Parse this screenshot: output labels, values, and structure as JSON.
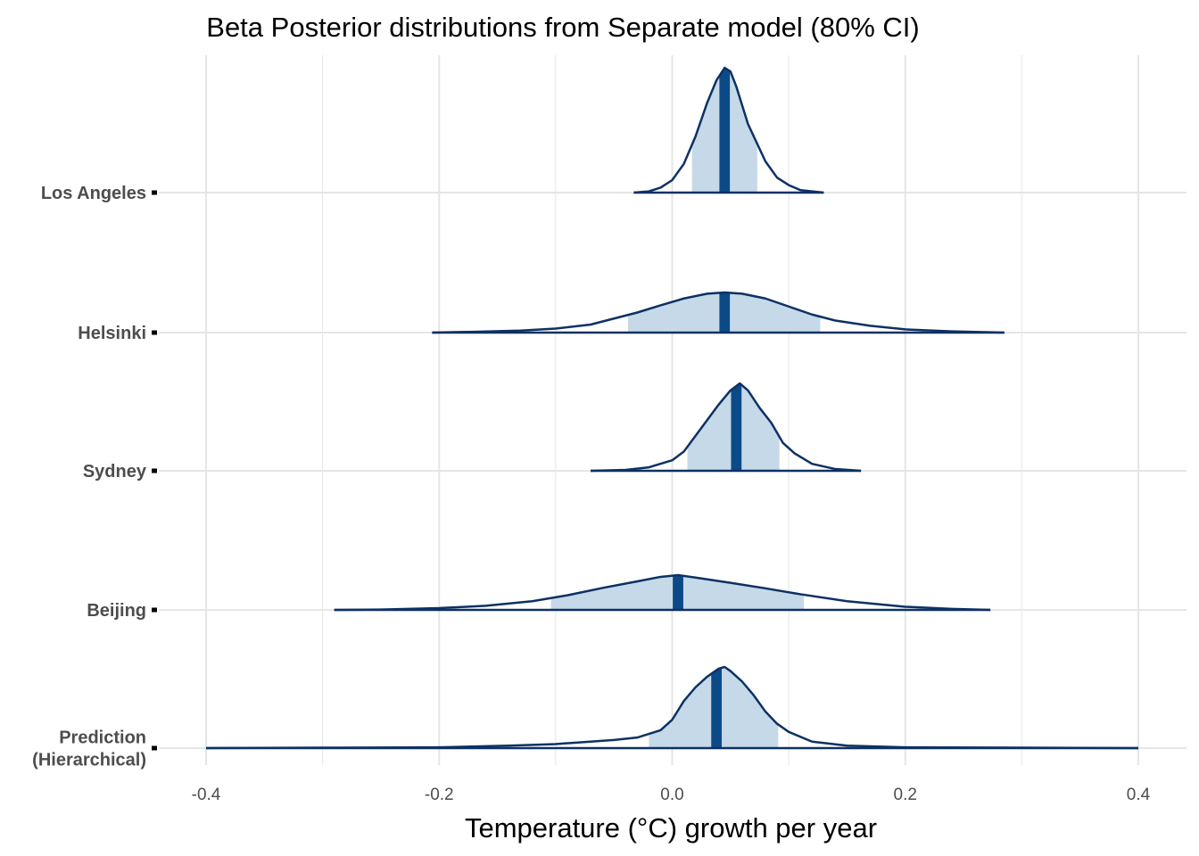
{
  "chart_data": {
    "type": "ridgeline",
    "title": "Beta Posterior distributions from Separate model (80% CI)",
    "xlabel": "Temperature (°C) growth per year",
    "ylabel": "",
    "xlim": [
      -0.4,
      0.4
    ],
    "x_ticks": [
      -0.4,
      -0.2,
      0.0,
      0.2,
      0.4
    ],
    "x_tick_labels": [
      "-0.4",
      "-0.2",
      "0.0",
      "0.2",
      "0.4"
    ],
    "grid": true,
    "ci_level": "80%",
    "colors": {
      "line": "#0d3163",
      "ci_fill": "#c6d9e9",
      "median": "#0b4a87",
      "grid": "#e5e5e5"
    },
    "series": [
      {
        "label": "Los Angeles",
        "median": 0.045,
        "ci": [
          0.017,
          0.073
        ],
        "range": [
          -0.033,
          0.13
        ],
        "density": [
          [
            -0.033,
            0
          ],
          [
            -0.02,
            0.01
          ],
          [
            -0.01,
            0.04
          ],
          [
            0.0,
            0.1
          ],
          [
            0.01,
            0.23
          ],
          [
            0.02,
            0.45
          ],
          [
            0.03,
            0.72
          ],
          [
            0.038,
            0.9
          ],
          [
            0.045,
            1.0
          ],
          [
            0.05,
            0.97
          ],
          [
            0.055,
            0.85
          ],
          [
            0.06,
            0.7
          ],
          [
            0.065,
            0.55
          ],
          [
            0.07,
            0.45
          ],
          [
            0.08,
            0.25
          ],
          [
            0.09,
            0.12
          ],
          [
            0.1,
            0.06
          ],
          [
            0.11,
            0.02
          ],
          [
            0.13,
            0
          ]
        ]
      },
      {
        "label": "Helsinki",
        "median": 0.045,
        "ci": [
          -0.038,
          0.127
        ],
        "range": [
          -0.206,
          0.285
        ],
        "density": [
          [
            -0.206,
            0
          ],
          [
            -0.17,
            0.02
          ],
          [
            -0.13,
            0.05
          ],
          [
            -0.1,
            0.1
          ],
          [
            -0.07,
            0.2
          ],
          [
            -0.05,
            0.35
          ],
          [
            -0.03,
            0.5
          ],
          [
            -0.01,
            0.68
          ],
          [
            0.01,
            0.85
          ],
          [
            0.03,
            0.97
          ],
          [
            0.045,
            1.0
          ],
          [
            0.06,
            0.97
          ],
          [
            0.08,
            0.85
          ],
          [
            0.1,
            0.65
          ],
          [
            0.12,
            0.45
          ],
          [
            0.14,
            0.3
          ],
          [
            0.17,
            0.17
          ],
          [
            0.2,
            0.08
          ],
          [
            0.24,
            0.03
          ],
          [
            0.285,
            0
          ]
        ]
      },
      {
        "label": "Sydney",
        "median": 0.055,
        "ci": [
          0.013,
          0.092
        ],
        "range": [
          -0.07,
          0.162
        ],
        "density": [
          [
            -0.07,
            0
          ],
          [
            -0.04,
            0.01
          ],
          [
            -0.02,
            0.04
          ],
          [
            0.0,
            0.12
          ],
          [
            0.01,
            0.22
          ],
          [
            0.02,
            0.4
          ],
          [
            0.03,
            0.58
          ],
          [
            0.04,
            0.76
          ],
          [
            0.05,
            0.92
          ],
          [
            0.058,
            1.0
          ],
          [
            0.065,
            0.92
          ],
          [
            0.075,
            0.72
          ],
          [
            0.085,
            0.55
          ],
          [
            0.095,
            0.32
          ],
          [
            0.105,
            0.2
          ],
          [
            0.12,
            0.08
          ],
          [
            0.14,
            0.02
          ],
          [
            0.162,
            0
          ]
        ]
      },
      {
        "label": "Beijing",
        "median": 0.005,
        "ci": [
          -0.104,
          0.113
        ],
        "range": [
          -0.29,
          0.273
        ],
        "density": [
          [
            -0.29,
            0
          ],
          [
            -0.25,
            0.01
          ],
          [
            -0.2,
            0.05
          ],
          [
            -0.16,
            0.12
          ],
          [
            -0.12,
            0.25
          ],
          [
            -0.09,
            0.42
          ],
          [
            -0.06,
            0.63
          ],
          [
            -0.03,
            0.82
          ],
          [
            -0.01,
            0.95
          ],
          [
            0.005,
            1.0
          ],
          [
            0.02,
            0.93
          ],
          [
            0.05,
            0.78
          ],
          [
            0.08,
            0.62
          ],
          [
            0.11,
            0.45
          ],
          [
            0.15,
            0.25
          ],
          [
            0.2,
            0.09
          ],
          [
            0.24,
            0.03
          ],
          [
            0.273,
            0
          ]
        ]
      },
      {
        "label": "Prediction\n(Hierarchical)",
        "median": 0.038,
        "ci": [
          -0.02,
          0.091
        ],
        "range": [
          -0.4,
          0.4
        ],
        "density": [
          [
            -0.4,
            0
          ],
          [
            -0.3,
            0.005
          ],
          [
            -0.2,
            0.01
          ],
          [
            -0.14,
            0.03
          ],
          [
            -0.1,
            0.05
          ],
          [
            -0.07,
            0.08
          ],
          [
            -0.05,
            0.1
          ],
          [
            -0.03,
            0.13
          ],
          [
            -0.01,
            0.22
          ],
          [
            0.0,
            0.35
          ],
          [
            0.01,
            0.58
          ],
          [
            0.02,
            0.75
          ],
          [
            0.03,
            0.88
          ],
          [
            0.04,
            0.98
          ],
          [
            0.045,
            1.0
          ],
          [
            0.05,
            0.95
          ],
          [
            0.06,
            0.82
          ],
          [
            0.07,
            0.65
          ],
          [
            0.08,
            0.45
          ],
          [
            0.09,
            0.3
          ],
          [
            0.1,
            0.2
          ],
          [
            0.12,
            0.08
          ],
          [
            0.15,
            0.03
          ],
          [
            0.2,
            0.01
          ],
          [
            0.3,
            0.005
          ],
          [
            0.4,
            0
          ]
        ]
      }
    ]
  }
}
